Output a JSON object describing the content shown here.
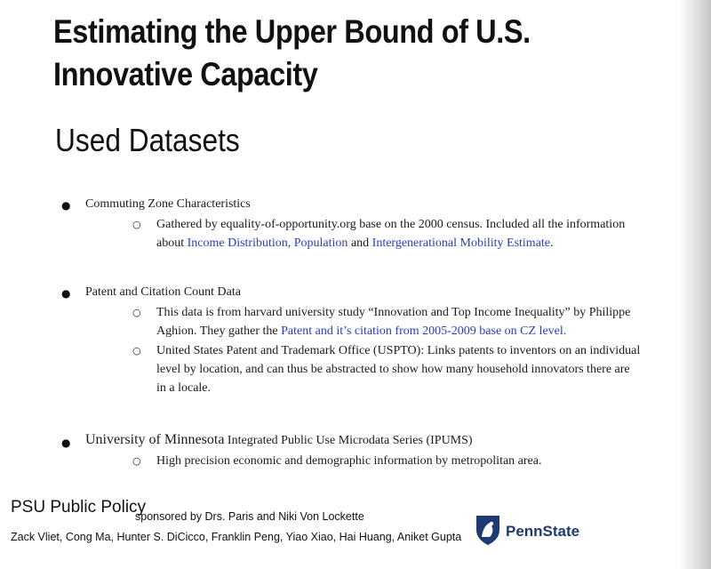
{
  "slide": {
    "title_line1": "Estimating the Upper Bound of U.S.",
    "title_line2": "Innovative Capacity",
    "subtitle": "Used Datasets"
  },
  "sections": [
    {
      "heading": "Commuting Zone Characteristics",
      "sub": [
        {
          "line1": "Gathered by equality-of-opportunity.org base on the 2000 census. Included all the information",
          "line2_pre": "about ",
          "link1": "Income Distribution, Population",
          "mid": " and ",
          "link2": "Intergenerational Mobility Estimate",
          "end": "."
        }
      ]
    },
    {
      "heading": "Patent and Citation Count Data",
      "sub": [
        {
          "line1": "This data is from harvard university study “Innovation and Top Income Inequality” by Philippe",
          "line2_pre": "Aghion. They gather the ",
          "link": "Patent and it’s citation from 2005-2009 base on CZ level."
        },
        {
          "line1": "United States Patent and Trademark Office (USPTO): Links patents to inventors on an individual",
          "line2": "level by location, and can thus be abstracted to show how many household innovators there are",
          "line3": "in a locale."
        }
      ]
    },
    {
      "heading_part1": "University of Minnesota",
      "heading_part2": " Integrated Public Use Microdata Series (IPUMS)",
      "sub": [
        {
          "line1": "High precision economic and demographic information by metropolitan area."
        }
      ]
    }
  ],
  "glyphs": {
    "bullet": "●",
    "subbullet": "○"
  },
  "footer": {
    "org": "PSU Public Policy",
    "sponsor": "sponsored by Drs. Paris and Niki Von Lockette",
    "names": "Zack Vliet, Cong Ma, Hunter S. DiCicco, Franklin Peng, Yiao Xiao,  Hai Huang, Aniket Gupta",
    "logo_text": "PennState",
    "logo_icon": "nittany-lion-shield-icon",
    "logo_color": "#1e3a73"
  }
}
